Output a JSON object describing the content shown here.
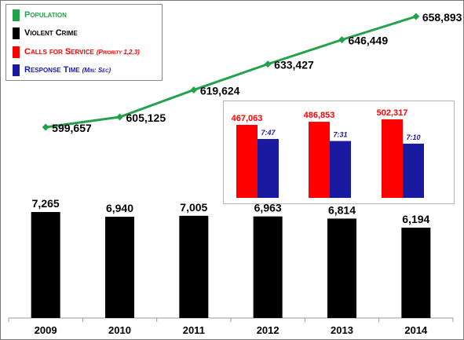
{
  "legend": [
    {
      "label": "Population",
      "sub": "",
      "color": "#22a24a"
    },
    {
      "label": "Violent Crime",
      "sub": "",
      "color": "#000000"
    },
    {
      "label": "Calls for Service",
      "sub": "(Priority 1,2,3)",
      "color": "#ff0000"
    },
    {
      "label": "Response Time",
      "sub": "(Min: Sec)",
      "color": "#1a1aa0"
    }
  ],
  "chart_data": [
    {
      "type": "line",
      "series": [
        {
          "name": "Population",
          "x": [
            "2009",
            "2010",
            "2011",
            "2012",
            "2013",
            "2014"
          ],
          "values": [
            599657,
            605125,
            619624,
            633427,
            646449,
            658893
          ],
          "labels": [
            "599,657",
            "605,125",
            "619,624",
            "633,427",
            "646,449",
            "658,893"
          ],
          "color": "#22a24a"
        }
      ]
    },
    {
      "type": "bar",
      "categories": [
        "2009",
        "2010",
        "2011",
        "2012",
        "2013",
        "2014"
      ],
      "series": [
        {
          "name": "Violent Crime",
          "values": [
            7265,
            6940,
            7005,
            6963,
            6814,
            6194
          ],
          "labels": [
            "7,265",
            "6,940",
            "7,005",
            "6,963",
            "6,814",
            "6,194"
          ],
          "color": "#000000"
        }
      ],
      "grid": false
    },
    {
      "type": "bar",
      "inset": true,
      "series": [
        {
          "name": "Calls for Service",
          "values": [
            467063,
            486853,
            502317
          ],
          "labels": [
            "467,063",
            "486,853",
            "502,317"
          ],
          "color": "#ff0000"
        },
        {
          "name": "Response Time",
          "values": [
            7.7833,
            7.5167,
            7.1667
          ],
          "labels": [
            "7:47",
            "7:31",
            "7:10"
          ],
          "color": "#1a1aa0"
        }
      ]
    }
  ]
}
